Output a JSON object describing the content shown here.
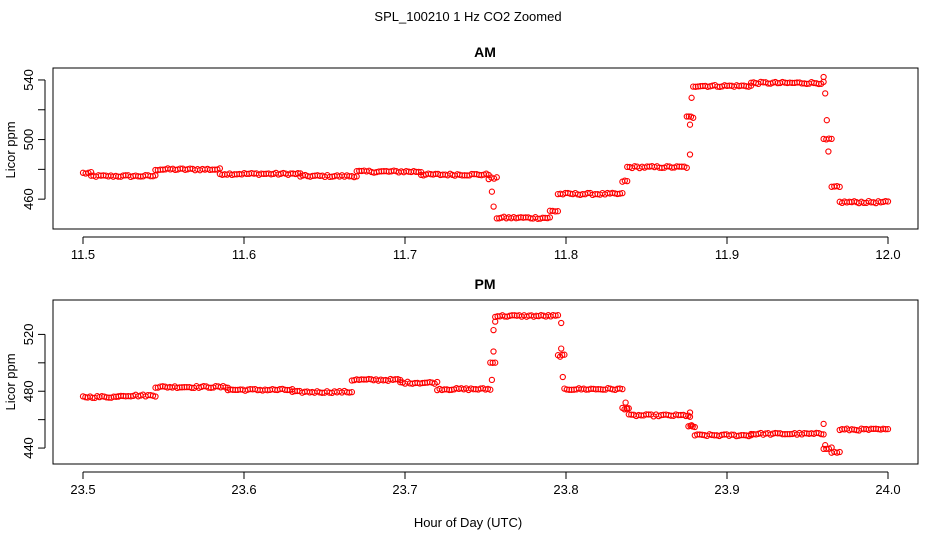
{
  "figure": {
    "title": "SPL_100210  1 Hz CO2 Zoomed",
    "xlabel": "Hour of Day (UTC)"
  },
  "chart_data": [
    {
      "type": "scatter",
      "title": "AM",
      "ylabel": "Licor ppm",
      "xlim": [
        11.5,
        12.0
      ],
      "ylim": [
        444,
        544
      ],
      "xticks": [
        11.5,
        11.6,
        11.7,
        11.8,
        11.9,
        12.0
      ],
      "xtick_labels": [
        "11.5",
        "11.6",
        "11.7",
        "11.8",
        "11.9",
        "12.0"
      ],
      "yticks": [
        460,
        480,
        500,
        520,
        540
      ],
      "ytick_labels": [
        "460",
        "",
        "500",
        "",
        "540"
      ],
      "marker_color": "#ff0000",
      "marker": "open-circle",
      "segments": [
        {
          "x0": 11.5,
          "x1": 11.505,
          "y": 477.5
        },
        {
          "x0": 11.505,
          "x1": 11.545,
          "y": 475.5
        },
        {
          "x0": 11.545,
          "x1": 11.585,
          "y": 480.0
        },
        {
          "x0": 11.585,
          "x1": 11.635,
          "y": 477.0
        },
        {
          "x0": 11.635,
          "x1": 11.67,
          "y": 475.5
        },
        {
          "x0": 11.67,
          "x1": 11.71,
          "y": 478.5
        },
        {
          "x0": 11.71,
          "x1": 11.752,
          "y": 476.5
        },
        {
          "x0": 11.752,
          "x1": 11.757,
          "y": 474.0
        },
        {
          "x0": 11.757,
          "x1": 11.79,
          "y": 447.5
        },
        {
          "x0": 11.79,
          "x1": 11.795,
          "y": 452.0
        },
        {
          "x0": 11.795,
          "x1": 11.835,
          "y": 463.5
        },
        {
          "x0": 11.835,
          "x1": 11.838,
          "y": 472.0
        },
        {
          "x0": 11.838,
          "x1": 11.875,
          "y": 481.5
        },
        {
          "x0": 11.875,
          "x1": 11.879,
          "y": 515.0
        },
        {
          "x0": 11.879,
          "x1": 11.915,
          "y": 536.0
        },
        {
          "x0": 11.915,
          "x1": 11.96,
          "y": 538.0
        },
        {
          "x0": 11.96,
          "x1": 11.965,
          "y": 500.0
        },
        {
          "x0": 11.965,
          "x1": 11.97,
          "y": 468.0
        },
        {
          "x0": 11.97,
          "x1": 12.0,
          "y": 458.0
        }
      ],
      "outliers": [
        {
          "x": 11.754,
          "y": 465
        },
        {
          "x": 11.755,
          "y": 455
        },
        {
          "x": 11.877,
          "y": 490
        },
        {
          "x": 11.877,
          "y": 510
        },
        {
          "x": 11.878,
          "y": 528
        },
        {
          "x": 11.96,
          "y": 542
        },
        {
          "x": 11.961,
          "y": 531
        },
        {
          "x": 11.962,
          "y": 513
        },
        {
          "x": 11.963,
          "y": 492
        }
      ]
    },
    {
      "type": "scatter",
      "title": "PM",
      "ylabel": "Licor ppm",
      "xlim": [
        23.5,
        24.0
      ],
      "ylim": [
        433,
        540
      ],
      "xticks": [
        23.5,
        23.6,
        23.7,
        23.8,
        23.9,
        24.0
      ],
      "xtick_labels": [
        "23.5",
        "23.6",
        "23.7",
        "23.8",
        "23.9",
        "24.0"
      ],
      "yticks": [
        440,
        460,
        480,
        500,
        520
      ],
      "ytick_labels": [
        "440",
        "",
        "480",
        "",
        "520"
      ],
      "marker_color": "#ff0000",
      "marker": "open-circle",
      "segments": [
        {
          "x0": 23.5,
          "x1": 23.522,
          "y": 476.0
        },
        {
          "x0": 23.522,
          "x1": 23.545,
          "y": 477.0
        },
        {
          "x0": 23.545,
          "x1": 23.59,
          "y": 483.0
        },
        {
          "x0": 23.59,
          "x1": 23.63,
          "y": 481.0
        },
        {
          "x0": 23.63,
          "x1": 23.667,
          "y": 479.5
        },
        {
          "x0": 23.667,
          "x1": 23.697,
          "y": 488.0
        },
        {
          "x0": 23.697,
          "x1": 23.72,
          "y": 486.0
        },
        {
          "x0": 23.72,
          "x1": 23.753,
          "y": 481.5
        },
        {
          "x0": 23.753,
          "x1": 23.756,
          "y": 500.0
        },
        {
          "x0": 23.756,
          "x1": 23.795,
          "y": 533.0
        },
        {
          "x0": 23.795,
          "x1": 23.799,
          "y": 505.0
        },
        {
          "x0": 23.799,
          "x1": 23.835,
          "y": 481.5
        },
        {
          "x0": 23.835,
          "x1": 23.839,
          "y": 468.0
        },
        {
          "x0": 23.839,
          "x1": 23.876,
          "y": 463.0
        },
        {
          "x0": 23.876,
          "x1": 23.88,
          "y": 455.0
        },
        {
          "x0": 23.88,
          "x1": 23.915,
          "y": 449.0
        },
        {
          "x0": 23.915,
          "x1": 23.96,
          "y": 450.0
        },
        {
          "x0": 23.96,
          "x1": 23.965,
          "y": 440.0
        },
        {
          "x0": 23.965,
          "x1": 23.97,
          "y": 437.0
        },
        {
          "x0": 23.97,
          "x1": 24.0,
          "y": 453.0
        }
      ],
      "outliers": [
        {
          "x": 23.754,
          "y": 488
        },
        {
          "x": 23.755,
          "y": 508
        },
        {
          "x": 23.755,
          "y": 523
        },
        {
          "x": 23.756,
          "y": 529
        },
        {
          "x": 23.797,
          "y": 528
        },
        {
          "x": 23.797,
          "y": 510
        },
        {
          "x": 23.798,
          "y": 490
        },
        {
          "x": 23.837,
          "y": 472
        },
        {
          "x": 23.838,
          "y": 468
        },
        {
          "x": 23.877,
          "y": 465
        },
        {
          "x": 23.877,
          "y": 462
        },
        {
          "x": 23.878,
          "y": 456
        },
        {
          "x": 23.96,
          "y": 457
        },
        {
          "x": 23.961,
          "y": 442
        }
      ]
    }
  ]
}
